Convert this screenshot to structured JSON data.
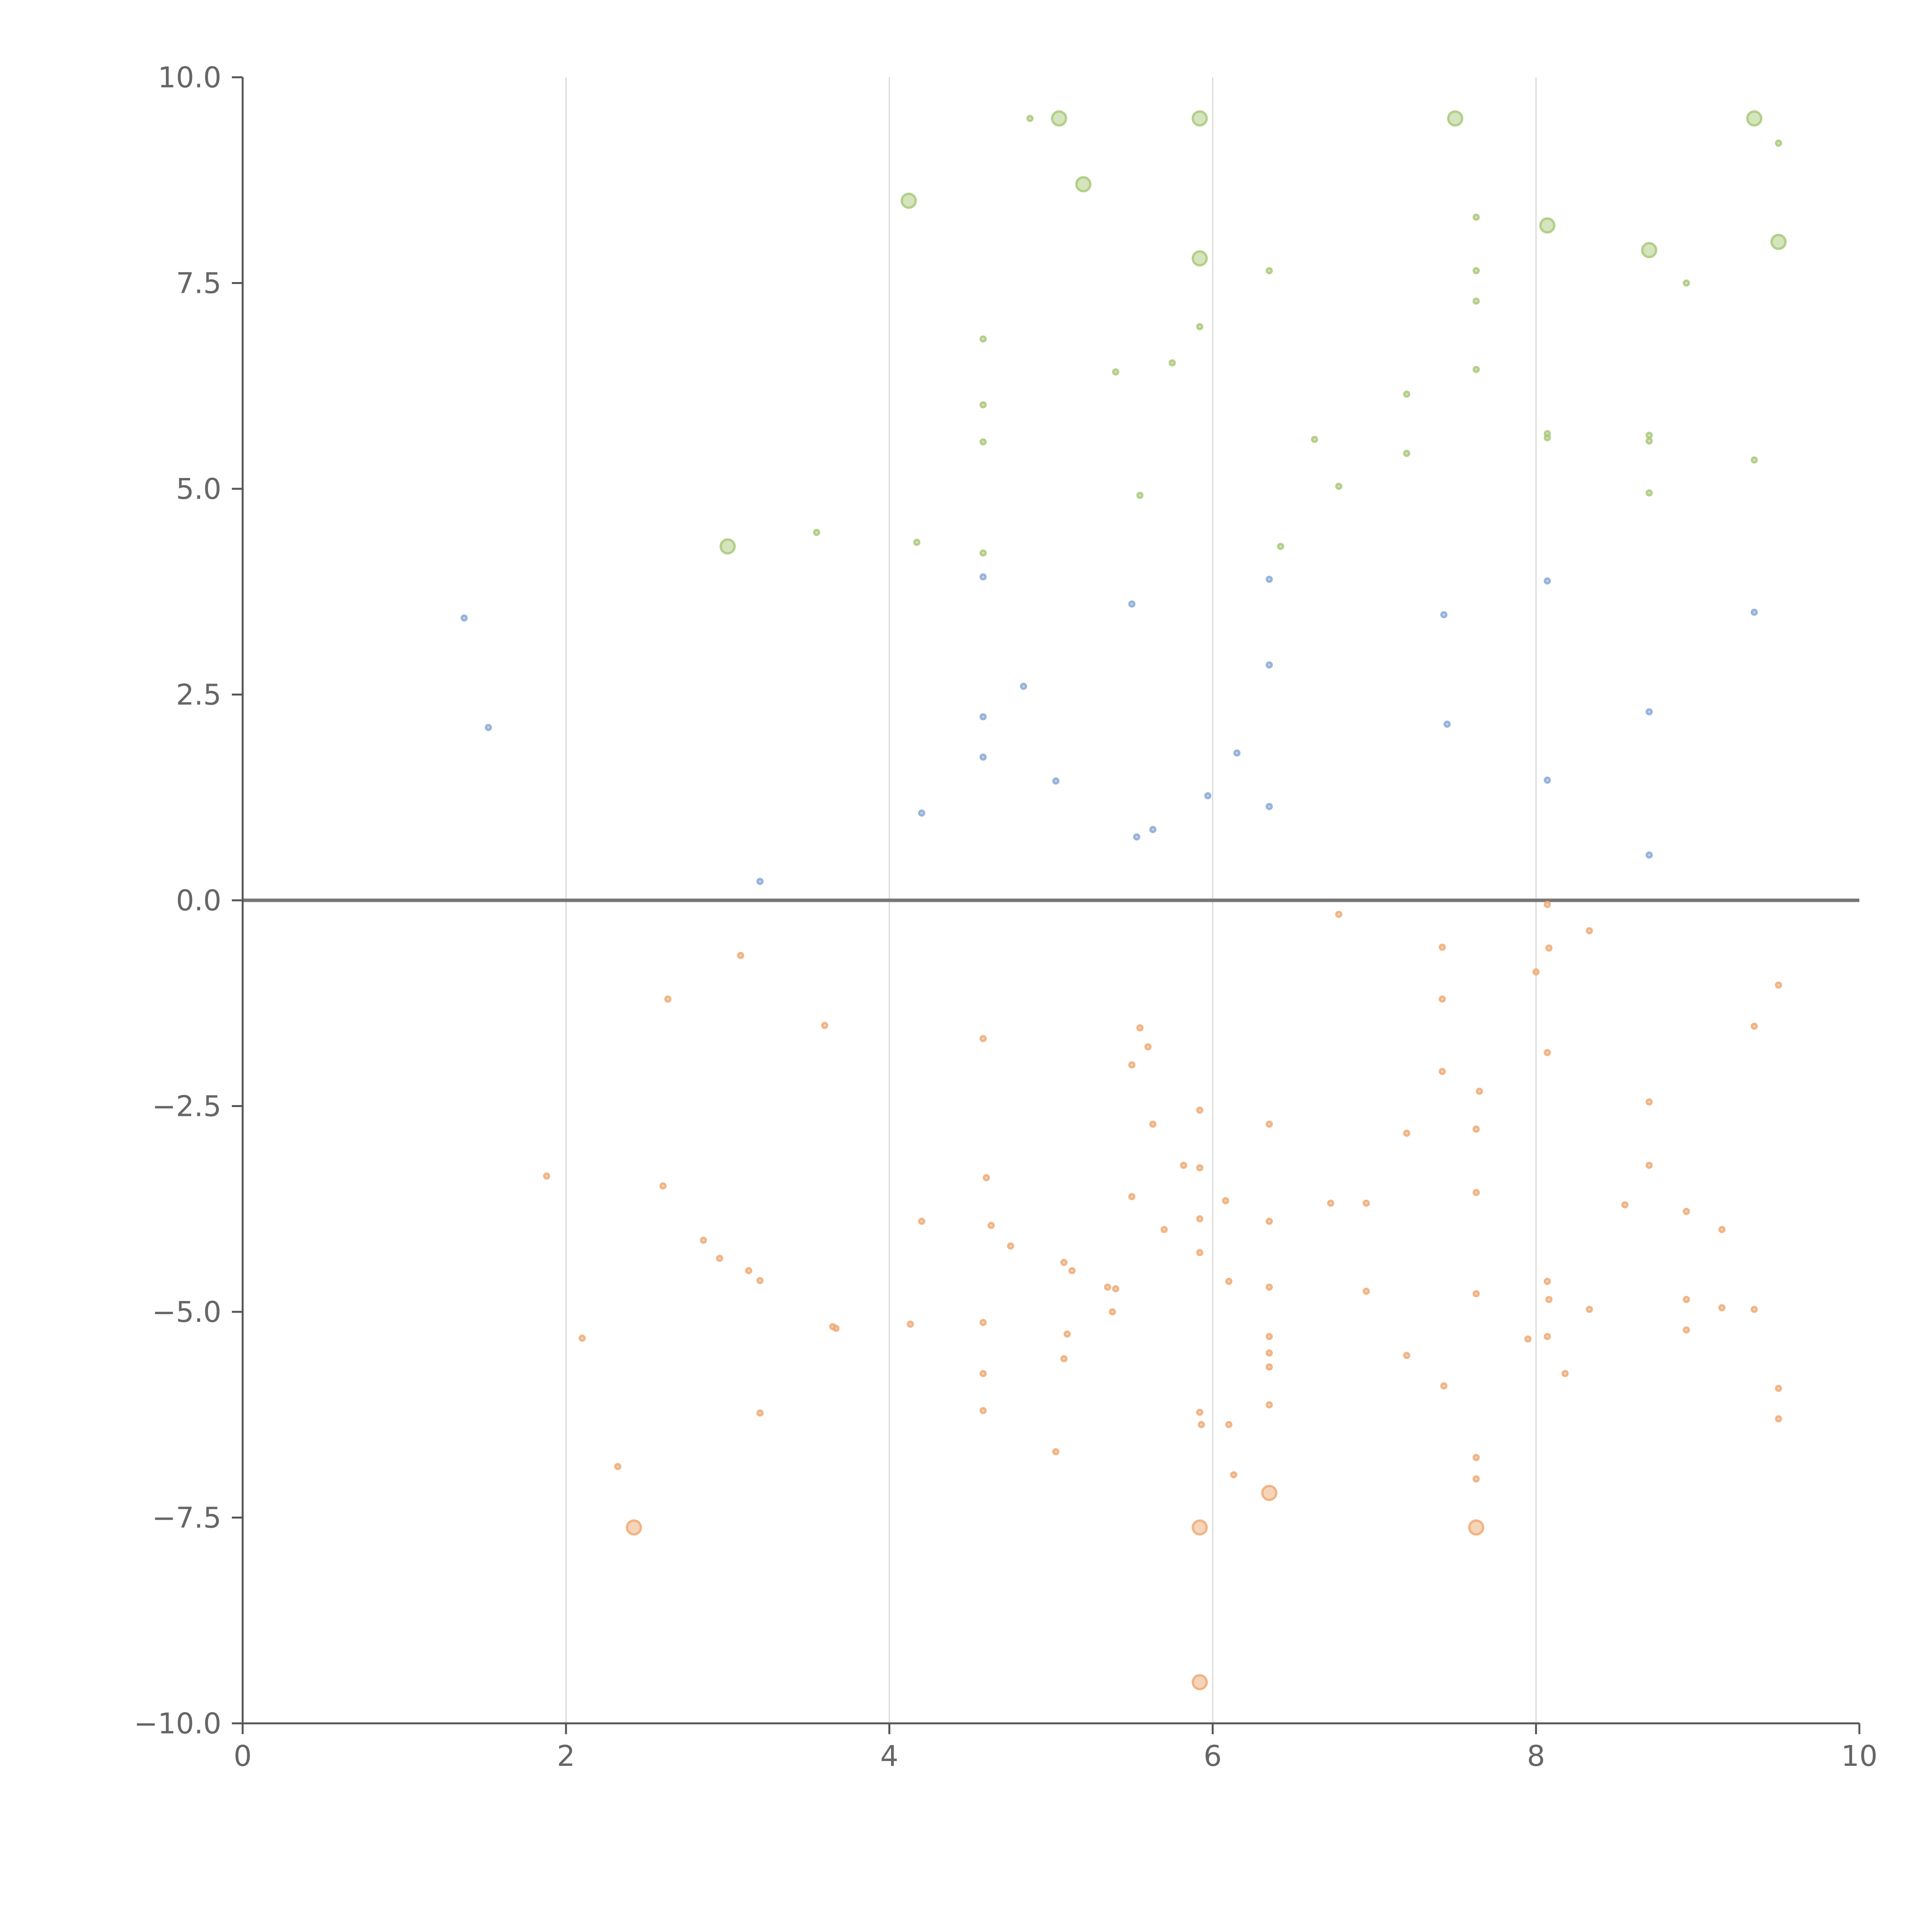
{
  "chart_data": {
    "type": "scatter",
    "title": "",
    "xlabel": "",
    "ylabel": "",
    "xlim": [
      0,
      10
    ],
    "ylim": [
      -10,
      10
    ],
    "x_ticks": [
      0,
      2,
      4,
      6,
      8,
      10
    ],
    "y_ticks": [
      10,
      7.5,
      5,
      2.5,
      0,
      -2.5,
      -5,
      -7.5,
      -10
    ],
    "x_tick_labels": [
      "0",
      "2",
      "4",
      "6",
      "8",
      "10"
    ],
    "y_tick_labels": [
      "10.0",
      "7.5",
      "5.0",
      "2.5",
      "0.0",
      "−2.5",
      "−5.0",
      "−7.5",
      "−10.0"
    ],
    "vertical_gridlines_at": [
      2,
      4,
      6,
      8
    ],
    "reference_line_y": 0,
    "legend": null,
    "series": [
      {
        "name": "green",
        "color": "#a9c97a",
        "points": [
          [
            3.0,
            4.3,
            4.3
          ],
          [
            4.12,
            8.5,
            4.3
          ],
          [
            5.05,
            9.5,
            4.3
          ],
          [
            5.2,
            8.7,
            4.3
          ],
          [
            5.92,
            9.5,
            4.3
          ],
          [
            5.92,
            7.8,
            4.3
          ],
          [
            7.5,
            9.5,
            4.3
          ],
          [
            8.07,
            8.2,
            4.3
          ],
          [
            8.7,
            7.9,
            4.3
          ],
          [
            9.35,
            9.5,
            4.3
          ],
          [
            9.5,
            8.0,
            4.3
          ],
          [
            3.55,
            4.47,
            1.5
          ],
          [
            4.17,
            4.35,
            1.5
          ],
          [
            4.58,
            4.22,
            1.5
          ],
          [
            4.58,
            5.57,
            1.5
          ],
          [
            4.58,
            6.02,
            1.5
          ],
          [
            4.58,
            6.82,
            1.5
          ],
          [
            4.87,
            9.5,
            1.5
          ],
          [
            5.4,
            6.42,
            1.5
          ],
          [
            5.55,
            4.92,
            1.5
          ],
          [
            5.75,
            6.53,
            1.5
          ],
          [
            5.92,
            6.97,
            1.5
          ],
          [
            6.35,
            7.65,
            1.5
          ],
          [
            6.42,
            4.3,
            1.5
          ],
          [
            6.63,
            5.6,
            1.5
          ],
          [
            6.78,
            5.03,
            1.5
          ],
          [
            7.2,
            6.15,
            1.5
          ],
          [
            7.2,
            5.43,
            1.5
          ],
          [
            7.63,
            8.3,
            1.5
          ],
          [
            7.63,
            7.65,
            1.5
          ],
          [
            7.63,
            7.28,
            1.5
          ],
          [
            7.63,
            6.45,
            1.5
          ],
          [
            8.07,
            5.67,
            1.5
          ],
          [
            8.07,
            5.62,
            1.5
          ],
          [
            8.7,
            5.65,
            1.5
          ],
          [
            8.7,
            5.58,
            1.5
          ],
          [
            8.7,
            4.95,
            1.5
          ],
          [
            8.93,
            7.5,
            1.5
          ],
          [
            9.35,
            5.35,
            1.5
          ],
          [
            9.5,
            9.2,
            1.5
          ]
        ]
      },
      {
        "name": "blue",
        "color": "#8aa9d6",
        "points": [
          [
            1.37,
            3.43,
            1.5
          ],
          [
            1.52,
            2.1,
            1.5
          ],
          [
            3.2,
            0.23,
            1.5
          ],
          [
            4.2,
            1.06,
            1.5
          ],
          [
            4.58,
            3.93,
            1.5
          ],
          [
            4.58,
            2.23,
            1.5
          ],
          [
            4.58,
            1.74,
            1.5
          ],
          [
            4.83,
            2.6,
            1.5
          ],
          [
            5.03,
            1.45,
            1.5
          ],
          [
            5.5,
            3.6,
            1.5
          ],
          [
            5.53,
            0.77,
            1.5
          ],
          [
            5.63,
            0.86,
            1.5
          ],
          [
            5.97,
            1.27,
            1.5
          ],
          [
            6.15,
            1.79,
            1.5
          ],
          [
            6.35,
            3.9,
            1.5
          ],
          [
            6.35,
            2.86,
            1.5
          ],
          [
            6.35,
            1.14,
            1.5
          ],
          [
            7.43,
            3.47,
            1.5
          ],
          [
            7.45,
            2.14,
            1.5
          ],
          [
            8.07,
            3.88,
            1.5
          ],
          [
            8.07,
            1.46,
            1.5
          ],
          [
            8.7,
            2.29,
            1.5
          ],
          [
            8.7,
            0.55,
            1.5
          ],
          [
            9.35,
            3.5,
            1.5
          ]
        ]
      },
      {
        "name": "orange",
        "color": "#eeaa76",
        "points": [
          [
            2.42,
            -7.62,
            4.3
          ],
          [
            5.92,
            -7.62,
            4.3
          ],
          [
            5.92,
            -9.5,
            4.3
          ],
          [
            6.35,
            -7.2,
            4.3
          ],
          [
            7.63,
            -7.62,
            4.3
          ],
          [
            1.88,
            -3.35,
            1.5
          ],
          [
            2.1,
            -5.32,
            1.5
          ],
          [
            2.32,
            -6.88,
            1.5
          ],
          [
            2.6,
            -3.47,
            1.5
          ],
          [
            2.63,
            -1.2,
            1.5
          ],
          [
            2.85,
            -4.13,
            1.5
          ],
          [
            2.95,
            -4.35,
            1.5
          ],
          [
            3.08,
            -0.67,
            1.5
          ],
          [
            3.13,
            -4.5,
            1.5
          ],
          [
            3.2,
            -4.62,
            1.5
          ],
          [
            3.2,
            -6.23,
            1.5
          ],
          [
            3.6,
            -1.52,
            1.5
          ],
          [
            3.65,
            -5.18,
            1.5
          ],
          [
            3.67,
            -5.2,
            1.5
          ],
          [
            4.13,
            -5.15,
            1.5
          ],
          [
            4.2,
            -3.9,
            1.5
          ],
          [
            4.58,
            -1.68,
            1.5
          ],
          [
            4.58,
            -5.13,
            1.5
          ],
          [
            4.58,
            -5.75,
            1.5
          ],
          [
            4.58,
            -6.2,
            1.5
          ],
          [
            4.6,
            -3.37,
            1.5
          ],
          [
            4.63,
            -3.95,
            1.5
          ],
          [
            4.75,
            -4.2,
            1.5
          ],
          [
            5.03,
            -6.7,
            1.5
          ],
          [
            5.08,
            -4.4,
            1.5
          ],
          [
            5.08,
            -5.57,
            1.5
          ],
          [
            5.1,
            -5.27,
            1.5
          ],
          [
            5.13,
            -4.5,
            1.5
          ],
          [
            5.35,
            -4.7,
            1.5
          ],
          [
            5.38,
            -5.0,
            1.5
          ],
          [
            5.4,
            -4.72,
            1.5
          ],
          [
            5.5,
            -2.0,
            1.5
          ],
          [
            5.5,
            -3.6,
            1.5
          ],
          [
            5.55,
            -1.55,
            1.5
          ],
          [
            5.6,
            -1.78,
            1.5
          ],
          [
            5.63,
            -2.72,
            1.5
          ],
          [
            5.7,
            -4.0,
            1.5
          ],
          [
            5.82,
            -3.22,
            1.5
          ],
          [
            5.92,
            -2.55,
            1.5
          ],
          [
            5.92,
            -3.25,
            1.5
          ],
          [
            5.92,
            -3.87,
            1.5
          ],
          [
            5.92,
            -4.28,
            1.5
          ],
          [
            5.92,
            -6.22,
            1.5
          ],
          [
            5.93,
            -6.37,
            1.5
          ],
          [
            6.08,
            -3.65,
            1.5
          ],
          [
            6.1,
            -4.63,
            1.5
          ],
          [
            6.1,
            -6.37,
            1.5
          ],
          [
            6.13,
            -6.98,
            1.5
          ],
          [
            6.35,
            -2.72,
            1.5
          ],
          [
            6.35,
            -3.9,
            1.5
          ],
          [
            6.35,
            -4.7,
            1.5
          ],
          [
            6.35,
            -5.3,
            1.5
          ],
          [
            6.35,
            -5.5,
            1.5
          ],
          [
            6.35,
            -5.67,
            1.5
          ],
          [
            6.35,
            -6.13,
            1.5
          ],
          [
            6.73,
            -3.68,
            1.5
          ],
          [
            6.78,
            -0.17,
            1.5
          ],
          [
            6.95,
            -3.68,
            1.5
          ],
          [
            6.95,
            -4.75,
            1.5
          ],
          [
            7.2,
            -2.83,
            1.5
          ],
          [
            7.2,
            -5.53,
            1.5
          ],
          [
            7.42,
            -0.57,
            1.5
          ],
          [
            7.42,
            -1.2,
            1.5
          ],
          [
            7.42,
            -2.08,
            1.5
          ],
          [
            7.43,
            -5.9,
            1.5
          ],
          [
            7.65,
            -2.32,
            1.5
          ],
          [
            7.63,
            -2.78,
            1.5
          ],
          [
            7.63,
            -3.55,
            1.5
          ],
          [
            7.63,
            -4.78,
            1.5
          ],
          [
            7.63,
            -6.77,
            1.5
          ],
          [
            7.63,
            -7.03,
            1.5
          ],
          [
            7.95,
            -5.33,
            1.5
          ],
          [
            8.0,
            -0.87,
            1.5
          ],
          [
            8.07,
            -0.05,
            1.5
          ],
          [
            8.08,
            -0.58,
            1.5
          ],
          [
            8.07,
            -1.85,
            1.5
          ],
          [
            8.07,
            -4.63,
            1.5
          ],
          [
            8.08,
            -4.85,
            1.5
          ],
          [
            8.07,
            -5.3,
            1.5
          ],
          [
            8.18,
            -5.75,
            1.5
          ],
          [
            8.33,
            -0.37,
            1.5
          ],
          [
            8.33,
            -4.97,
            1.5
          ],
          [
            8.55,
            -3.7,
            1.5
          ],
          [
            8.7,
            -2.45,
            1.5
          ],
          [
            8.7,
            -3.22,
            1.5
          ],
          [
            8.93,
            -3.78,
            1.5
          ],
          [
            8.93,
            -4.85,
            1.5
          ],
          [
            8.93,
            -5.22,
            1.5
          ],
          [
            9.15,
            -4.0,
            1.5
          ],
          [
            9.15,
            -4.95,
            1.5
          ],
          [
            9.35,
            -1.53,
            1.5
          ],
          [
            9.35,
            -4.97,
            1.5
          ],
          [
            9.5,
            -1.03,
            1.5
          ],
          [
            9.5,
            -5.93,
            1.5
          ],
          [
            9.5,
            -6.3,
            1.5
          ]
        ]
      }
    ]
  }
}
